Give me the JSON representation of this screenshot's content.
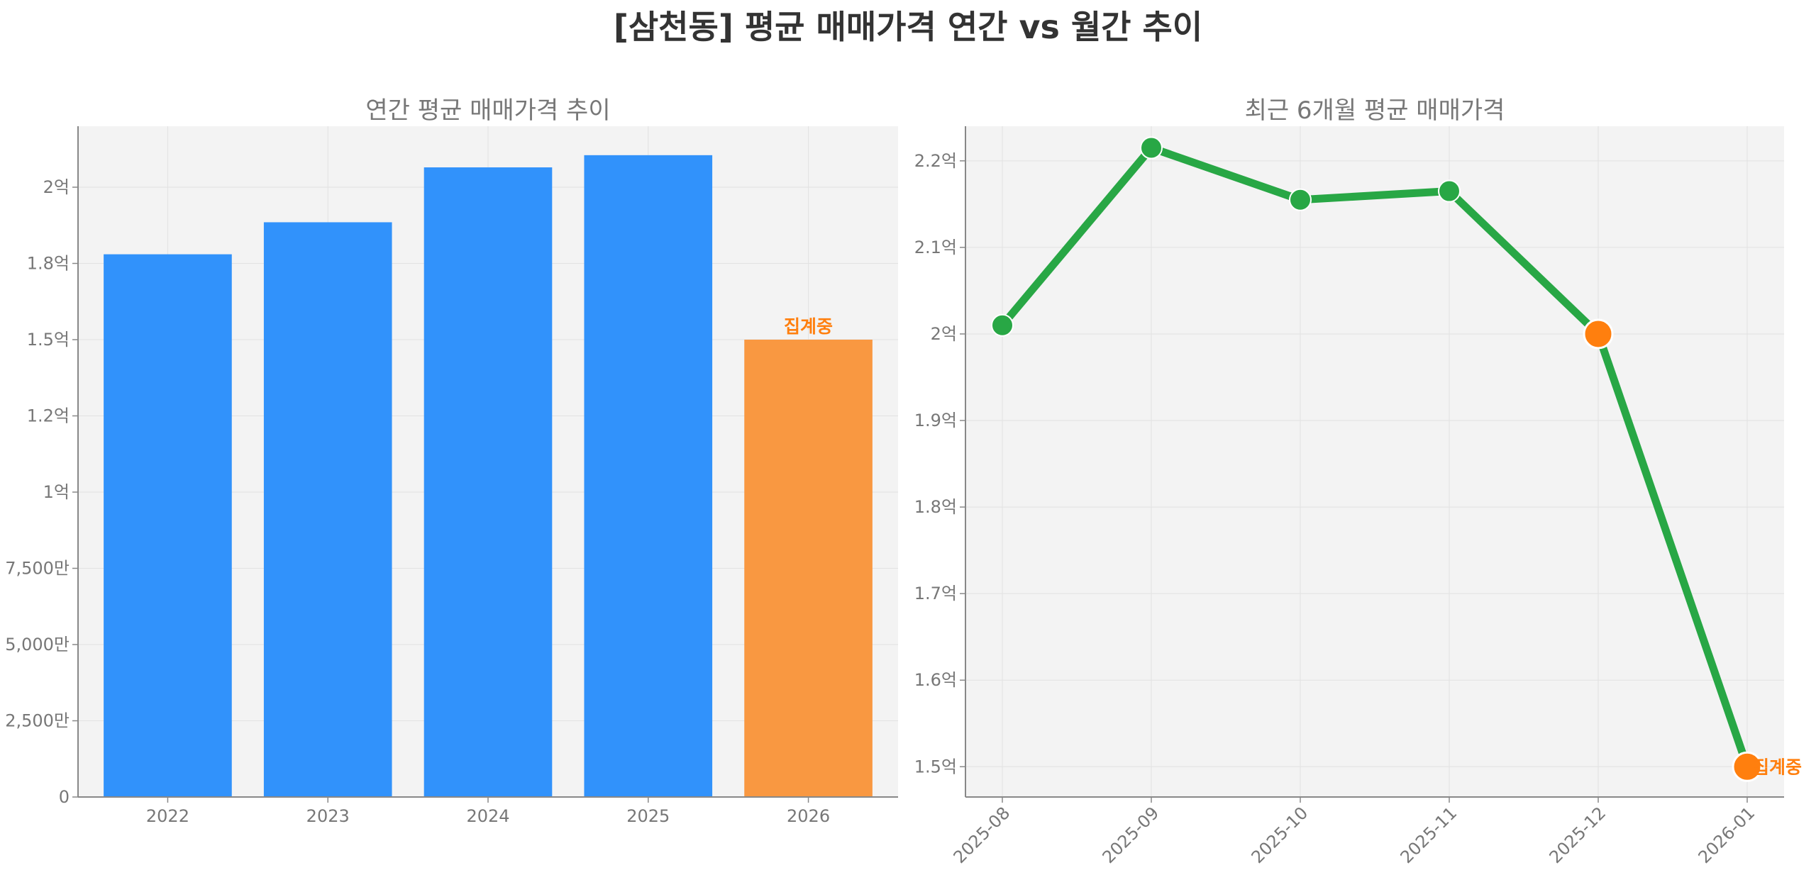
{
  "figure_title": "[삼천동] 평균 매매가격 연간 vs 월간 추이",
  "colors": {
    "panel_bg": "#f3f3f3",
    "bar_complete": "#3192fb",
    "bar_partial": "#f99841",
    "line": "#28a745",
    "highlight_marker": "#ff7f0e",
    "annotation": "#ff7f0e",
    "text": "#777777"
  },
  "chart_data": [
    {
      "type": "bar",
      "title": "연간 평균 매매가격 추이",
      "categories": [
        "2022",
        "2023",
        "2024",
        "2025",
        "2026"
      ],
      "values": [
        178000000,
        188500000,
        206500000,
        210500000,
        150000000
      ],
      "bar_status": [
        "complete",
        "complete",
        "complete",
        "complete",
        "partial"
      ],
      "annotations": [
        {
          "category": "2026",
          "text": "집계중"
        }
      ],
      "ylim": [
        0,
        220000000
      ],
      "yticks": [
        0,
        25000000,
        50000000,
        75000000,
        100000000,
        125000000,
        150000000,
        175000000,
        200000000
      ],
      "ytick_labels": [
        "0",
        "2,500만",
        "5,000만",
        "7,500만",
        "1억",
        "1.2억",
        "1.5억",
        "1.8억",
        "2억"
      ],
      "xlabel": "",
      "ylabel": "",
      "grid": true
    },
    {
      "type": "line",
      "title": "최근 6개월 평균 매매가격",
      "x": [
        "2025-08",
        "2025-09",
        "2025-10",
        "2025-11",
        "2025-12",
        "2026-01"
      ],
      "values": [
        201000000,
        221500000,
        215500000,
        216500000,
        200000000,
        150000000
      ],
      "highlighted_points": [
        "2025-12",
        "2026-01"
      ],
      "annotations": [
        {
          "x": "2026-01",
          "text": "집계중"
        }
      ],
      "ylim": [
        146500000,
        224000000
      ],
      "yticks": [
        150000000,
        160000000,
        170000000,
        180000000,
        190000000,
        200000000,
        210000000,
        220000000
      ],
      "ytick_labels": [
        "1.5억",
        "1.6억",
        "1.7억",
        "1.8억",
        "1.9억",
        "2억",
        "2.1억",
        "2.2억"
      ],
      "xlabel": "",
      "ylabel": "",
      "grid": true
    }
  ]
}
